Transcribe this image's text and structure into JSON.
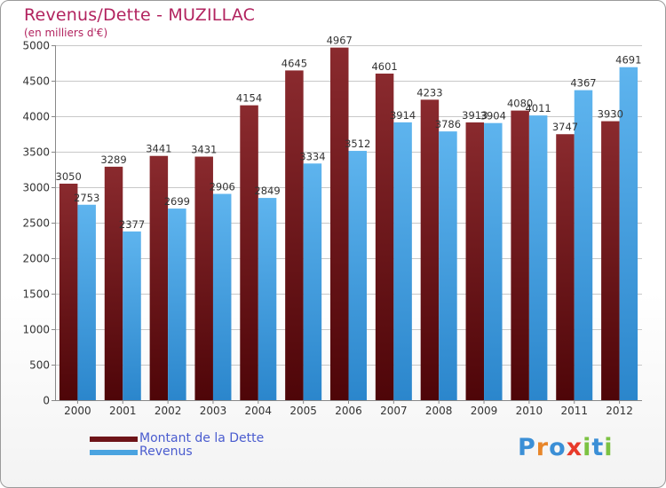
{
  "chart_data": {
    "type": "bar",
    "title": "Revenus/Dette - MUZILLAC",
    "subtitle": "(en milliers d'€)",
    "categories": [
      "2000",
      "2001",
      "2002",
      "2003",
      "2004",
      "2005",
      "2006",
      "2007",
      "2008",
      "2009",
      "2010",
      "2011",
      "2012"
    ],
    "series": [
      {
        "name": "Montant de la Dette",
        "color": "#6e1418",
        "values": [
          3050,
          3289,
          3441,
          3431,
          4154,
          4645,
          4967,
          4601,
          4233,
          3913,
          4080,
          3747,
          3930
        ]
      },
      {
        "name": "Revenus",
        "color": "#4aa3e0",
        "values": [
          2753,
          2377,
          2699,
          2906,
          2849,
          3334,
          3512,
          3914,
          3786,
          3904,
          4011,
          4367,
          4691
        ]
      }
    ],
    "ylim": [
      0,
      5000
    ],
    "yticks": [
      0,
      500,
      1000,
      1500,
      2000,
      2500,
      3000,
      3500,
      4000,
      4500,
      5000
    ],
    "grid": true,
    "legend": "bottom-left"
  },
  "logo": {
    "letters": [
      "P",
      "r",
      "o",
      "x",
      "i",
      "t",
      "i"
    ],
    "colors": [
      "#3b8fd6",
      "#e8862a",
      "#3b8fd6",
      "#e83a2a",
      "#7cc242",
      "#3b8fd6",
      "#7cc242"
    ]
  }
}
